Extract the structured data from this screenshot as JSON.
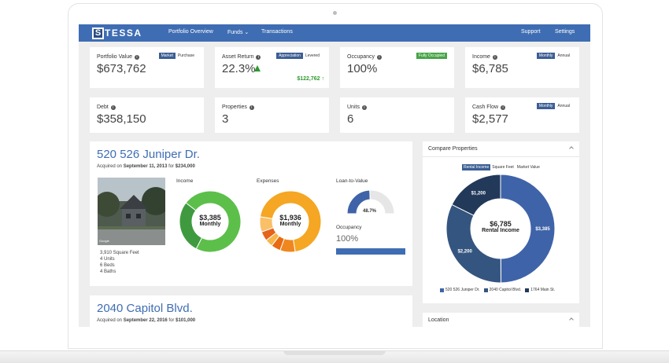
{
  "nav": {
    "logo_letter": "S",
    "logo_text": "TESSA",
    "items": [
      "Portfolio Overview",
      "Funds ⌄",
      "Transactions"
    ],
    "right_items": [
      "Support",
      "Settings"
    ]
  },
  "kpis": {
    "portfolio_value": {
      "label": "Portfolio Value",
      "value": "$673,762",
      "toggle": [
        "Market",
        "Purchase"
      ]
    },
    "asset_return": {
      "label": "Asset Return",
      "value": "22.3%",
      "toggle": [
        "Appreciation",
        "Levered"
      ],
      "levered_value": "$122,762 ↑"
    },
    "occupancy": {
      "label": "Occupancy",
      "value": "100%",
      "badge": "Fully Occupied"
    },
    "income": {
      "label": "Income",
      "value": "$6,785",
      "toggle": [
        "Monthly",
        "Annual"
      ]
    },
    "debt": {
      "label": "Debt",
      "value": "$358,150"
    },
    "properties": {
      "label": "Properties",
      "value": "3"
    },
    "units": {
      "label": "Units",
      "value": "6"
    },
    "cash_flow": {
      "label": "Cash Flow",
      "value": "$2,577",
      "toggle": [
        "Monthly",
        "Annual"
      ]
    }
  },
  "property1": {
    "title": "520 526 Juniper Dr.",
    "acquired_prefix": "Acquired on",
    "acquired_date": "September 11, 2013",
    "acquired_for": "for",
    "acquired_price": "$234,000",
    "specs": [
      "3,910 Square Feet",
      "4 Units",
      "6 Beds",
      "4 Baths"
    ],
    "photo_caption": "Google",
    "income_label": "Income",
    "income_center": "$3,385",
    "income_center_sub": "Monthly",
    "income_fraction_dark": 0.28,
    "expenses_label": "Expenses",
    "expenses_center": "$1,936",
    "expenses_center_sub": "Monthly",
    "ltv_label": "Loan-to-Value",
    "ltv_value": "48.7%",
    "ltv_fraction": 0.487,
    "occupancy_label": "Occupancy",
    "occupancy_value": "100%",
    "occupancy_fraction": 1.0
  },
  "property2": {
    "title": "2040 Capitol Blvd.",
    "acquired_prefix": "Acquired on",
    "acquired_date": "September 22, 2016",
    "acquired_for": "for",
    "acquired_price": "$101,000"
  },
  "compare": {
    "title": "Compare Properties",
    "tabs": [
      "Rental Income",
      "Square Feet",
      "Market Value"
    ],
    "center_value": "$6,785",
    "center_label": "Rental Income",
    "chart_data": {
      "type": "pie",
      "categories": [
        "520 526 Juniper Dr.",
        "2040 Capitol Blvd.",
        "1764 Main St."
      ],
      "values": [
        3385,
        2200,
        1200
      ],
      "data_labels": [
        "$3,385",
        "$2,200",
        "$1,200"
      ]
    },
    "colors": [
      "#3f63a8",
      "#34557f",
      "#22395a"
    ]
  },
  "location": {
    "title": "Location"
  },
  "colors": {
    "brand": "#3f6db3",
    "green": "#5cbf4a",
    "orange": "#f5a623"
  }
}
